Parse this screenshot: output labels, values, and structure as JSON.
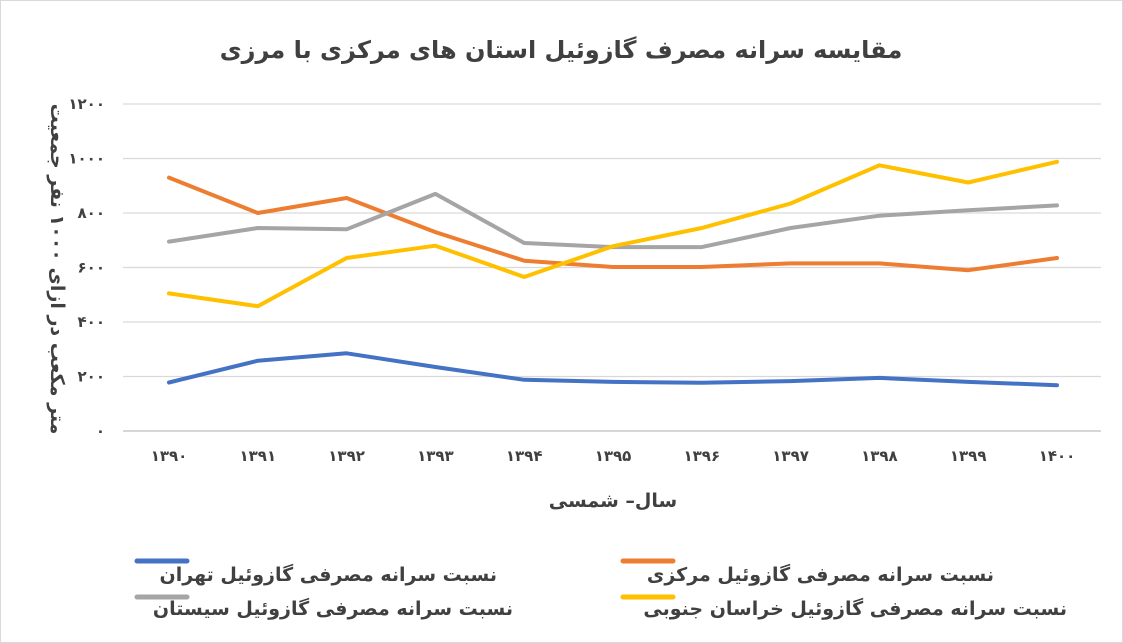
{
  "chart_data": {
    "type": "line",
    "title": "مقایسه سرانه مصرف گازوئیل استان های مرکزی با مرزی",
    "xlabel": "سال– شمسی",
    "ylabel": "متر مکعب در ازای ۱۰۰۰ نفر جمعیت",
    "categories": [
      "۱۳۹۰",
      "۱۳۹۱",
      "۱۳۹۲",
      "۱۳۹۳",
      "۱۳۹۴",
      "۱۳۹۵",
      "۱۳۹۶",
      "۱۳۹۷",
      "۱۳۹۸",
      "۱۳۹۹",
      "۱۴۰۰"
    ],
    "y_ticks": [
      0,
      200,
      400,
      600,
      800,
      1000,
      1200
    ],
    "y_tick_labels": [
      "۰",
      "۲۰۰",
      "۴۰۰",
      "۶۰۰",
      "۸۰۰",
      "۱۰۰۰",
      "۱۲۰۰"
    ],
    "ylim": [
      0,
      1200
    ],
    "grid": true,
    "legend_position": "bottom",
    "series": [
      {
        "name": "نسبت سرانه مصرفی گازوئیل تهران",
        "color": "#4472C4",
        "values": [
          178,
          258,
          285,
          235,
          188,
          180,
          177,
          183,
          195,
          180,
          168
        ]
      },
      {
        "name": "نسبت سرانه مصرفی گازوئیل مرکزی",
        "color": "#ED7D31",
        "values": [
          930,
          800,
          855,
          730,
          625,
          602,
          602,
          615,
          615,
          590,
          635
        ]
      },
      {
        "name": "نسبت سرانه مصرفی گازوئیل سیستان",
        "color": "#A5A5A5",
        "values": [
          695,
          745,
          740,
          870,
          690,
          675,
          675,
          745,
          790,
          810,
          828
        ]
      },
      {
        "name": "نسبت سرانه مصرفی گازوئیل خراسان جنوبی",
        "color": "#FFC000",
        "values": [
          505,
          458,
          635,
          680,
          565,
          678,
          745,
          835,
          975,
          912,
          988
        ]
      }
    ]
  }
}
